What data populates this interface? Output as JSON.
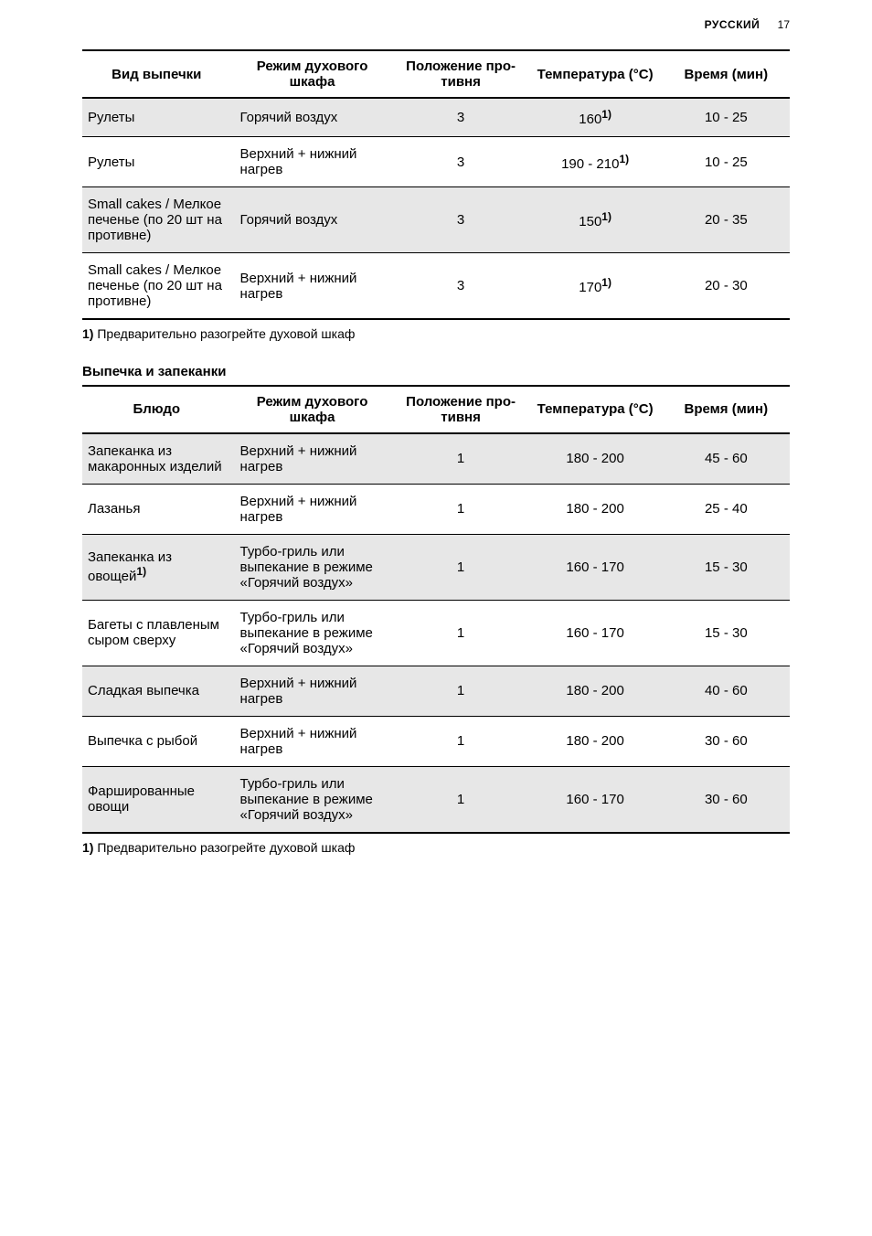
{
  "header": {
    "language": "РУССКИЙ",
    "page_number": "17"
  },
  "table1": {
    "columns": [
      "Вид выпечки",
      "Режим духового шкафа",
      "Положение про­тивня",
      "Температура (°C)",
      "Время (мин)"
    ],
    "rows": [
      {
        "shaded": true,
        "cells": [
          "Рулеты",
          "Горячий воздух",
          "3",
          "160",
          "10 - 25"
        ],
        "temp_sup": "1)"
      },
      {
        "shaded": false,
        "cells": [
          "Рулеты",
          "Верхний + ниж­ний нагрев",
          "3",
          "190 - 210",
          "10 - 25"
        ],
        "temp_sup": "1)"
      },
      {
        "shaded": true,
        "cells": [
          "Small cakes / Мелкое печенье (по 20 шт на противне)",
          "Горячий воздух",
          "3",
          "150",
          "20 - 35"
        ],
        "temp_sup": "1)"
      },
      {
        "shaded": false,
        "cells": [
          "Small cakes / Мелкое печенье (по 20 шт на противне)",
          "Верхний + ниж­ний нагрев",
          "3",
          "170",
          "20 - 30"
        ],
        "temp_sup": "1)"
      }
    ],
    "footnote_marker": "1)",
    "footnote_text": " Предварительно разогрейте духовой шкаф"
  },
  "section2_title": "Выпечка и запеканки",
  "table2": {
    "columns": [
      "Блюдо",
      "Режим духового шкафа",
      "Положение про­тивня",
      "Температура (°C)",
      "Время (мин)"
    ],
    "rows": [
      {
        "shaded": true,
        "cells": [
          "Запеканка из макаронных из­делий",
          "Верхний + ниж­ний нагрев",
          "1",
          "180 - 200",
          "45 - 60"
        ],
        "name_sup": ""
      },
      {
        "shaded": false,
        "cells": [
          "Лазанья",
          "Верхний + ниж­ний нагрев",
          "1",
          "180 - 200",
          "25 - 40"
        ],
        "name_sup": ""
      },
      {
        "shaded": true,
        "cells": [
          "Запеканка из овощей",
          "Турбо-гриль или выпекание в режиме «Го­рячий воздух»",
          "1",
          "160 - 170",
          "15 - 30"
        ],
        "name_sup": "1)"
      },
      {
        "shaded": false,
        "cells": [
          "Багеты с пла­вленым сыром сверху",
          "Турбо-гриль или выпекание в режиме «Го­рячий воздух»",
          "1",
          "160 - 170",
          "15 - 30"
        ],
        "name_sup": ""
      },
      {
        "shaded": true,
        "cells": [
          "Сладкая выпеч­ка",
          "Верхний + ниж­ний нагрев",
          "1",
          "180 - 200",
          "40 - 60"
        ],
        "name_sup": ""
      },
      {
        "shaded": false,
        "cells": [
          "Выпечка с рыб­ой",
          "Верхний + ниж­ний нагрев",
          "1",
          "180 - 200",
          "30 - 60"
        ],
        "name_sup": ""
      },
      {
        "shaded": true,
        "cells": [
          "Фарширован­ные овощи",
          "Турбо-гриль или выпекание в режиме «Го­рячий воздух»",
          "1",
          "160 - 170",
          "30 - 60"
        ],
        "name_sup": ""
      }
    ],
    "footnote_marker": "1)",
    "footnote_text": " Предварительно разогрейте духовой шкаф"
  }
}
